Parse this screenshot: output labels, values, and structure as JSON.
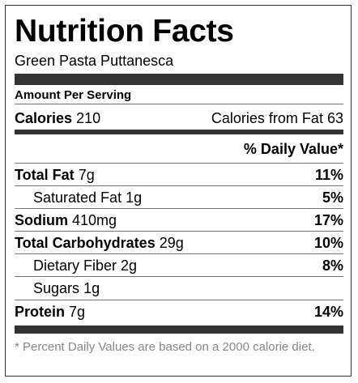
{
  "title": "Nutrition Facts",
  "recipe_name": "Green Pasta Puttanesca",
  "amount_per_serving": "Amount Per Serving",
  "calories": {
    "label": "Calories",
    "value": "210",
    "from_fat_label": "Calories from Fat",
    "from_fat_value": "63"
  },
  "dv_header": "% Daily Value*",
  "nutrients": [
    {
      "label": "Total Fat",
      "amount": "7g",
      "dv": "11%"
    },
    {
      "label": "Saturated Fat",
      "amount": "1g",
      "dv": "5%"
    },
    {
      "label": "Sodium",
      "amount": "410mg",
      "dv": "17%"
    },
    {
      "label": "Total Carbohydrates",
      "amount": "29g",
      "dv": "10%"
    },
    {
      "label": "Dietary Fiber",
      "amount": "2g",
      "dv": "8%"
    },
    {
      "label": "Sugars",
      "amount": "1g",
      "dv": ""
    },
    {
      "label": "Protein",
      "amount": "7g",
      "dv": "14%"
    }
  ],
  "footnote": "* Percent Daily Values are based on a 2000 calorie diet."
}
